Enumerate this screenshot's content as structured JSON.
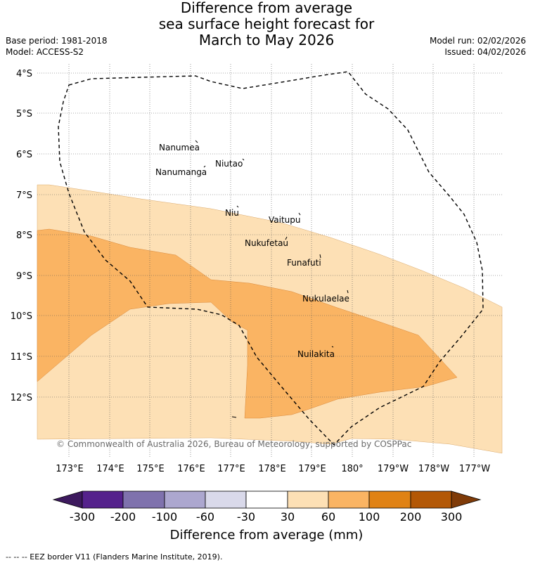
{
  "title": {
    "line1": "Difference from average",
    "line2": "sea surface height forecast for",
    "line3": "March to May 2026"
  },
  "meta_left": {
    "base_period": "Base period: 1981-2018",
    "model": "Model: ACCESS-S2"
  },
  "meta_right": {
    "model_run": "Model run: 02/02/2026",
    "issued": "Issued: 04/02/2026"
  },
  "map": {
    "lat_labels": [
      "4°S",
      "5°S",
      "6°S",
      "7°S",
      "8°S",
      "9°S",
      "10°S",
      "11°S",
      "12°S"
    ],
    "lon_labels": [
      "173°E",
      "174°E",
      "175°E",
      "176°E",
      "177°E",
      "178°E",
      "179°E",
      "180°",
      "179°W",
      "178°W",
      "177°W"
    ],
    "islands": [
      {
        "name": "Nanumea"
      },
      {
        "name": "Nanumanga"
      },
      {
        "name": "Niutao"
      },
      {
        "name": "Niu"
      },
      {
        "name": "Vaitupu"
      },
      {
        "name": "Nukufetau"
      },
      {
        "name": "Funafuti"
      },
      {
        "name": "Nukulaelae"
      },
      {
        "name": "Nuilakita"
      }
    ],
    "copyright": "© Commonwealth of Australia 2026, Bureau of Meteorology, supported by COSPPac"
  },
  "colorbar": {
    "ticks": [
      "-300",
      "-200",
      "-100",
      "-60",
      "-30",
      "30",
      "60",
      "100",
      "200",
      "300"
    ],
    "colors": [
      "#3d1a5e",
      "#55228c",
      "#7f72ad",
      "#aca7cf",
      "#d9d9ea",
      "#ffffff",
      "#fde0b5",
      "#fab463",
      "#e08214",
      "#b35806",
      "#7f3b08"
    ],
    "label": "Difference from average (mm)"
  },
  "legend_colors": {
    "light_band": "#fde0b5",
    "medium_band": "#fab463"
  },
  "footer": "--  --  -- EEZ border V11 (Flanders Marine Institute, 2019)."
}
